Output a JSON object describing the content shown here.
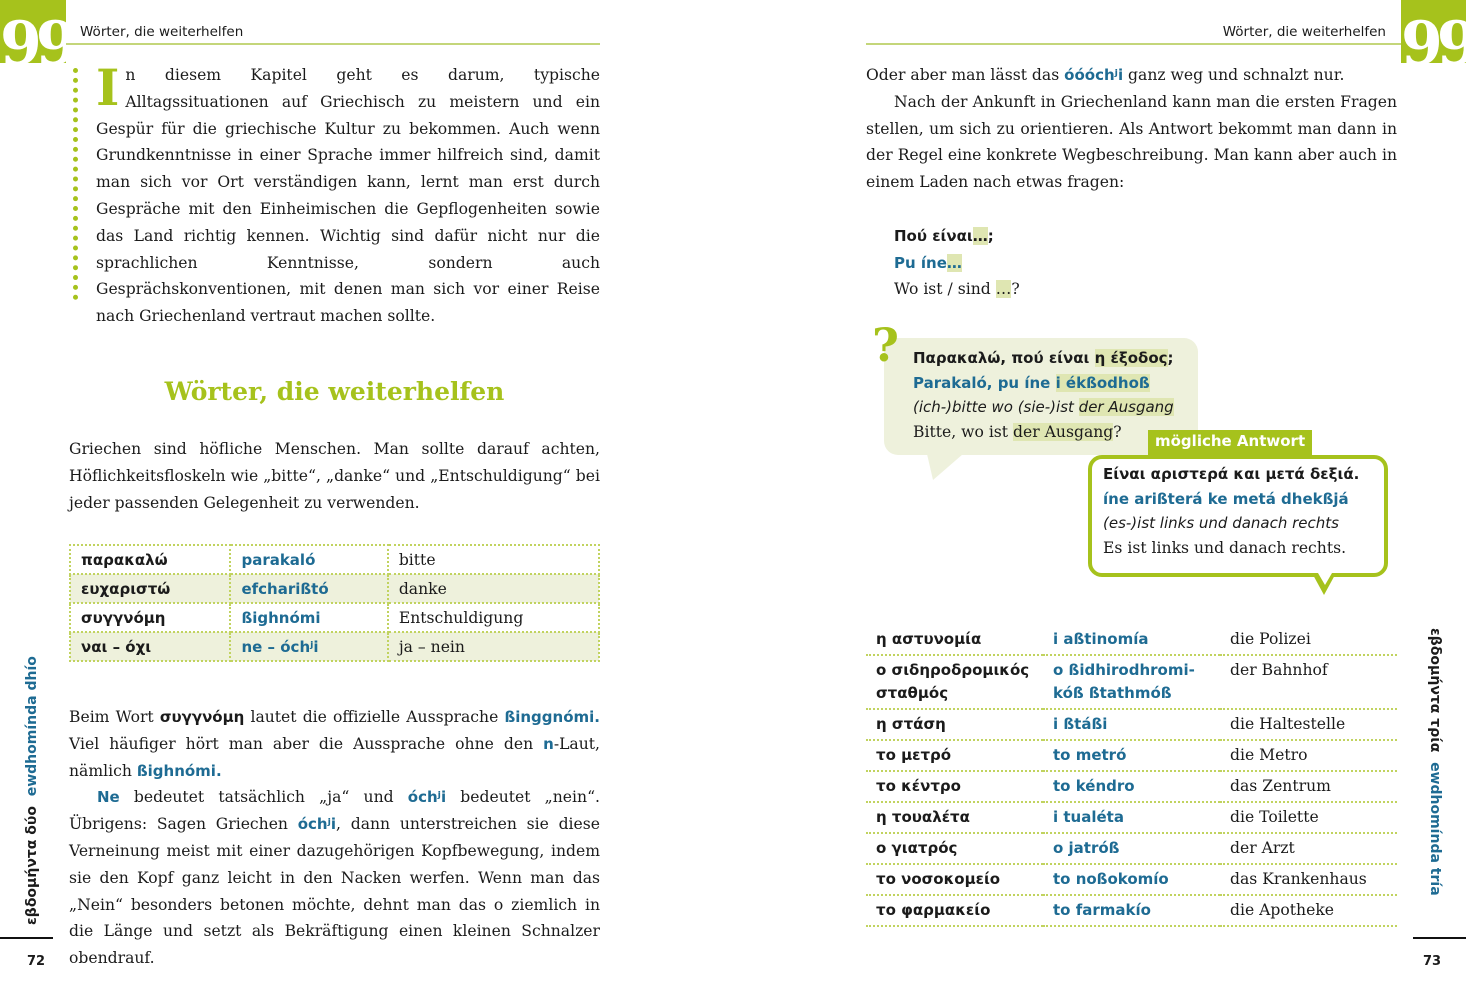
{
  "colors": {
    "accent": "#a6c21c",
    "pronunciation": "#1e6b93",
    "highlight": "#dfe6b2",
    "bubble": "#eef1dc"
  },
  "left_page": {
    "quote_icon": "closing-quote-icon",
    "header": "Wörter, die weiterhelfen",
    "intro_dropcap": "I",
    "intro": "n diesem Kapitel geht es darum, typische Alltagssituationen auf Griechisch zu meistern und ein Gespür für die griechische Kultur zu bekommen. Auch wenn Grundkenntnisse in einer Sprache immer hilfreich sind, damit man sich vor Ort verständigen kann, lernt man erst durch Gespräche mit den Einheimischen die Gepflogenheiten sowie das Land richtig kennen. Wichtig sind dafür nicht nur die sprachlichen Kenntnisse, sondern auch Gesprächskonventionen, mit denen man sich vor einer Reise nach Griechenland vertraut machen sollte.",
    "section_title": "Wörter, die weiterhelfen",
    "section_text": "Griechen sind höfliche Menschen. Man sollte darauf achten, Höflichkeitsfloskeln wie „bitte“, „danke“ und „Entschuldigung“ bei jeder passenden Gelegenheit zu verwenden.",
    "vocab": [
      {
        "greek": "παρακαλώ",
        "pron": "parakaló",
        "german": "bitte"
      },
      {
        "greek": "ευχαριστώ",
        "pron": "efcharißtó",
        "german": "danke"
      },
      {
        "greek": "συγγνόμη",
        "pron": "ßighnómi",
        "german": "Entschuldigung"
      },
      {
        "greek": "ναι – όχι",
        "pron": "ne – óchʲi",
        "german": "ja – nein"
      }
    ],
    "paragraphs": [
      [
        {
          "t": "Beim Wort ",
          "s": ""
        },
        {
          "t": "συγγνόμη",
          "s": "b"
        },
        {
          "t": " lautet die offizielle Aussprache ",
          "s": ""
        },
        {
          "t": "ßinggnómi.",
          "s": "p"
        },
        {
          "t": " Viel häufiger hört man aber die Aussprache ohne den ",
          "s": ""
        },
        {
          "t": "n",
          "s": "p"
        },
        {
          "t": "-Laut, nämlich ",
          "s": ""
        },
        {
          "t": "ßighnómi.",
          "s": "p"
        }
      ],
      [
        {
          "t": "Ne",
          "s": "p"
        },
        {
          "t": " bedeutet tatsächlich „ja“ und ",
          "s": ""
        },
        {
          "t": "óchʲi",
          "s": "p"
        },
        {
          "t": " bedeutet „nein“. Übrigens: Sagen Griechen ",
          "s": ""
        },
        {
          "t": "óchʲi",
          "s": "p"
        },
        {
          "t": ", dann unterstreichen sie diese Verneinung meist mit einer dazugehörigen Kopfbewegung, indem sie den Kopf ganz leicht in den Nacken werfen. Wenn man das „Nein“ besonders betonen möchte, dehnt man das o ziemlich in die Länge und setzt als Bekräftigung einen kleinen Schnalzer obendrauf.",
          "s": ""
        }
      ]
    ],
    "side_greek": "εβδομήντα δύο",
    "side_pron": "ewdhomínda dhío",
    "page_number": "72"
  },
  "right_page": {
    "quote_icon": "closing-quote-icon",
    "header": "Wörter, die weiterhelfen",
    "paragraphs": [
      [
        {
          "t": "Oder aber man lässt das ",
          "s": ""
        },
        {
          "t": "óóóchʲi",
          "s": "p"
        },
        {
          "t": " ganz weg und schnalzt nur.",
          "s": ""
        }
      ],
      [
        {
          "t": "Nach der Ankunft in Griechenland kann man die ersten Fragen stellen, um sich zu orientieren. Als Antwort bekommt man dann in der Regel eine konkrete Wegbeschreibung. Man kann aber auch in einem Laden nach etwas fragen:",
          "s": ""
        }
      ]
    ],
    "pattern": {
      "greek": [
        {
          "t": "Πού είναι",
          "s": "b"
        },
        {
          "t": "…",
          "s": "b hl"
        },
        {
          "t": ";",
          "s": "b"
        }
      ],
      "pron": [
        {
          "t": "Pu íne",
          "s": "p"
        },
        {
          "t": "…",
          "s": "p hl"
        }
      ],
      "german": [
        {
          "t": "Wo ist / sind ",
          "s": ""
        },
        {
          "t": "…",
          "s": "hl"
        },
        {
          "t": "?",
          "s": ""
        }
      ]
    },
    "question_icon": "question-mark-icon",
    "question_mark": "?",
    "question": {
      "greek": [
        {
          "t": "Παρακαλώ, πού είναι ",
          "s": "b"
        },
        {
          "t": "η έξοδος",
          "s": "b hl"
        },
        {
          "t": ";",
          "s": "b"
        }
      ],
      "pron": [
        {
          "t": "Parakaló, pu íne ",
          "s": "p"
        },
        {
          "t": "i ékßodhoß",
          "s": "p hl"
        }
      ],
      "literal": [
        {
          "t": "(ich-)bitte wo (sie-)ist ",
          "s": "i"
        },
        {
          "t": "der Ausgang",
          "s": "i hl"
        }
      ],
      "german": [
        {
          "t": "Bitte, wo ist ",
          "s": ""
        },
        {
          "t": "der Ausgang",
          "s": "hl"
        },
        {
          "t": "?",
          "s": ""
        }
      ]
    },
    "answer_label": "mögliche Antwort",
    "answer": {
      "greek": [
        {
          "t": "Είναι αριστερά και μετά δεξιά.",
          "s": "b"
        }
      ],
      "pron": [
        {
          "t": "íne arißterá ke metá dhekßjá",
          "s": "p"
        }
      ],
      "literal": [
        {
          "t": "(es-)ist links und danach rechts",
          "s": "i"
        }
      ],
      "german": [
        {
          "t": "Es ist links und danach rechts.",
          "s": ""
        }
      ]
    },
    "vocab": [
      {
        "greek": "η αστυνομία",
        "pron": "i aßtinomía",
        "german": "die Polizei"
      },
      {
        "greek": "ο σιδηροδρομικός σταθμός",
        "pron": "o ßidhirodhromi-kóß ßtathmóß",
        "german": "der Bahnhof"
      },
      {
        "greek": "η στάση",
        "pron": "i ßtáßi",
        "german": "die Haltestelle"
      },
      {
        "greek": "το μετρό",
        "pron": "to metró",
        "german": "die Metro"
      },
      {
        "greek": "το κέντρο",
        "pron": "to kéndro",
        "german": "das Zentrum"
      },
      {
        "greek": "η τουαλέτα",
        "pron": "i tualéta",
        "german": "die Toilette"
      },
      {
        "greek": "ο γιατρός",
        "pron": "o jatróß",
        "german": "der Arzt"
      },
      {
        "greek": "το νοσοκομείο",
        "pron": "to noßokomío",
        "german": "das Krankenhaus"
      },
      {
        "greek": "το φαρμακείο",
        "pron": "to farmakío",
        "german": "die Apotheke"
      }
    ],
    "side_greek": "εβδομήντα τρία",
    "side_pron": "ewdhomínda tría",
    "page_number": "73"
  }
}
